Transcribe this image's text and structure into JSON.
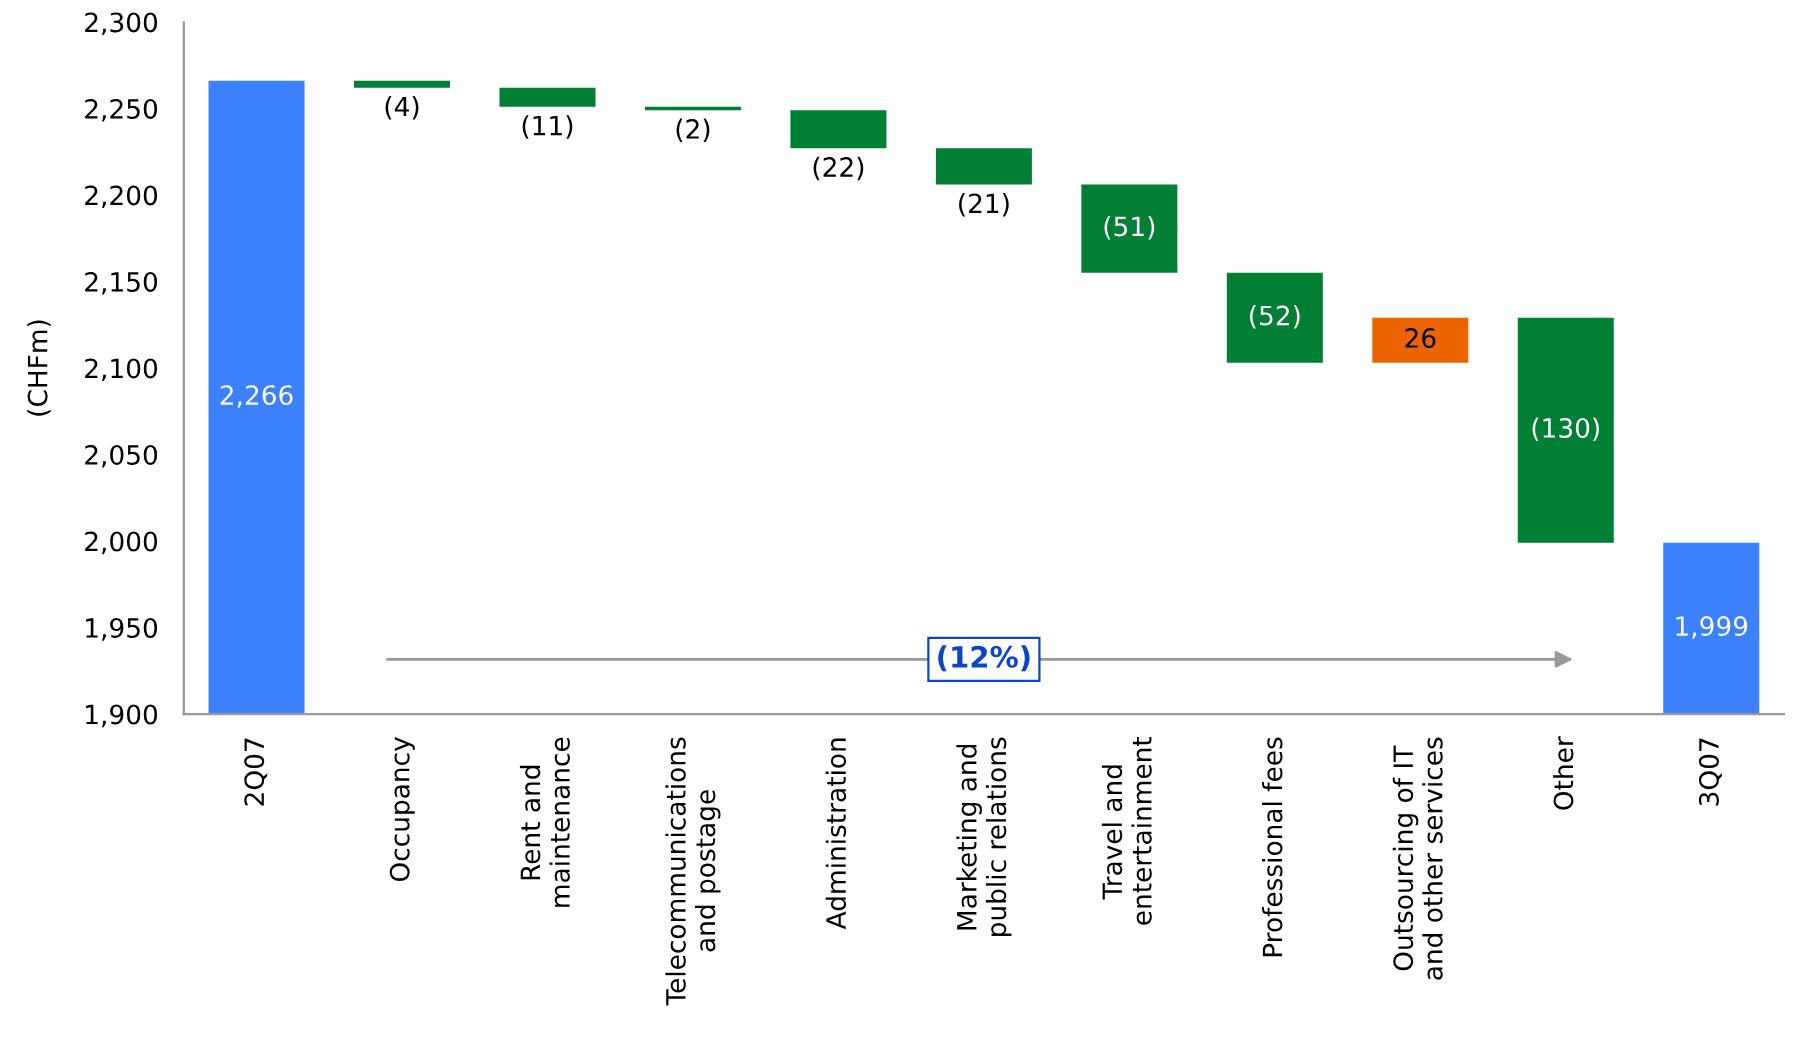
{
  "chart_data": {
    "type": "bar",
    "ylabel": "(CHFm)",
    "categories": [
      "2Q07",
      "Occupancy",
      "Rent and\nmaintenance",
      "Telecommunications\nand postage",
      "Administration",
      "Marketing and\npublic relations",
      "Travel and\nentertainment",
      "Professional fees",
      "Outsourcing of IT\nand other services",
      "Other",
      "3Q07"
    ],
    "values": [
      2266,
      -4,
      -11,
      -2,
      -22,
      -21,
      -51,
      -52,
      26,
      -130,
      1999
    ],
    "base": [
      null,
      2266,
      2262,
      2251,
      2249,
      2227,
      2206,
      2155,
      2103,
      2129,
      null
    ],
    "colors": [
      "#3a80ff",
      "#007f35",
      "#007f35",
      "#007f35",
      "#007f35",
      "#007f35",
      "#007f35",
      "#007f35",
      "#ec6402",
      "#007f35",
      "#3a80ff"
    ],
    "value_labels": [
      "2,266",
      "(4)",
      "(11)",
      "(2)",
      "(22)",
      "(21)",
      "(51)",
      "(52)",
      "26",
      "(130)",
      "1,999"
    ],
    "ylim": [
      1900,
      2300
    ],
    "yticks": [
      {
        "value": 1900,
        "label": "1,900"
      },
      {
        "value": 1950,
        "label": "1,950"
      },
      {
        "value": 2000,
        "label": "2,000"
      },
      {
        "value": 2050,
        "label": "2,050"
      },
      {
        "value": 2100,
        "label": "2,100"
      },
      {
        "value": 2150,
        "label": "2,150"
      },
      {
        "value": 2200,
        "label": "2,200"
      },
      {
        "value": 2250,
        "label": "2,250"
      },
      {
        "value": 2300,
        "label": "2,300"
      }
    ],
    "annotations": [
      "(12%)"
    ]
  }
}
